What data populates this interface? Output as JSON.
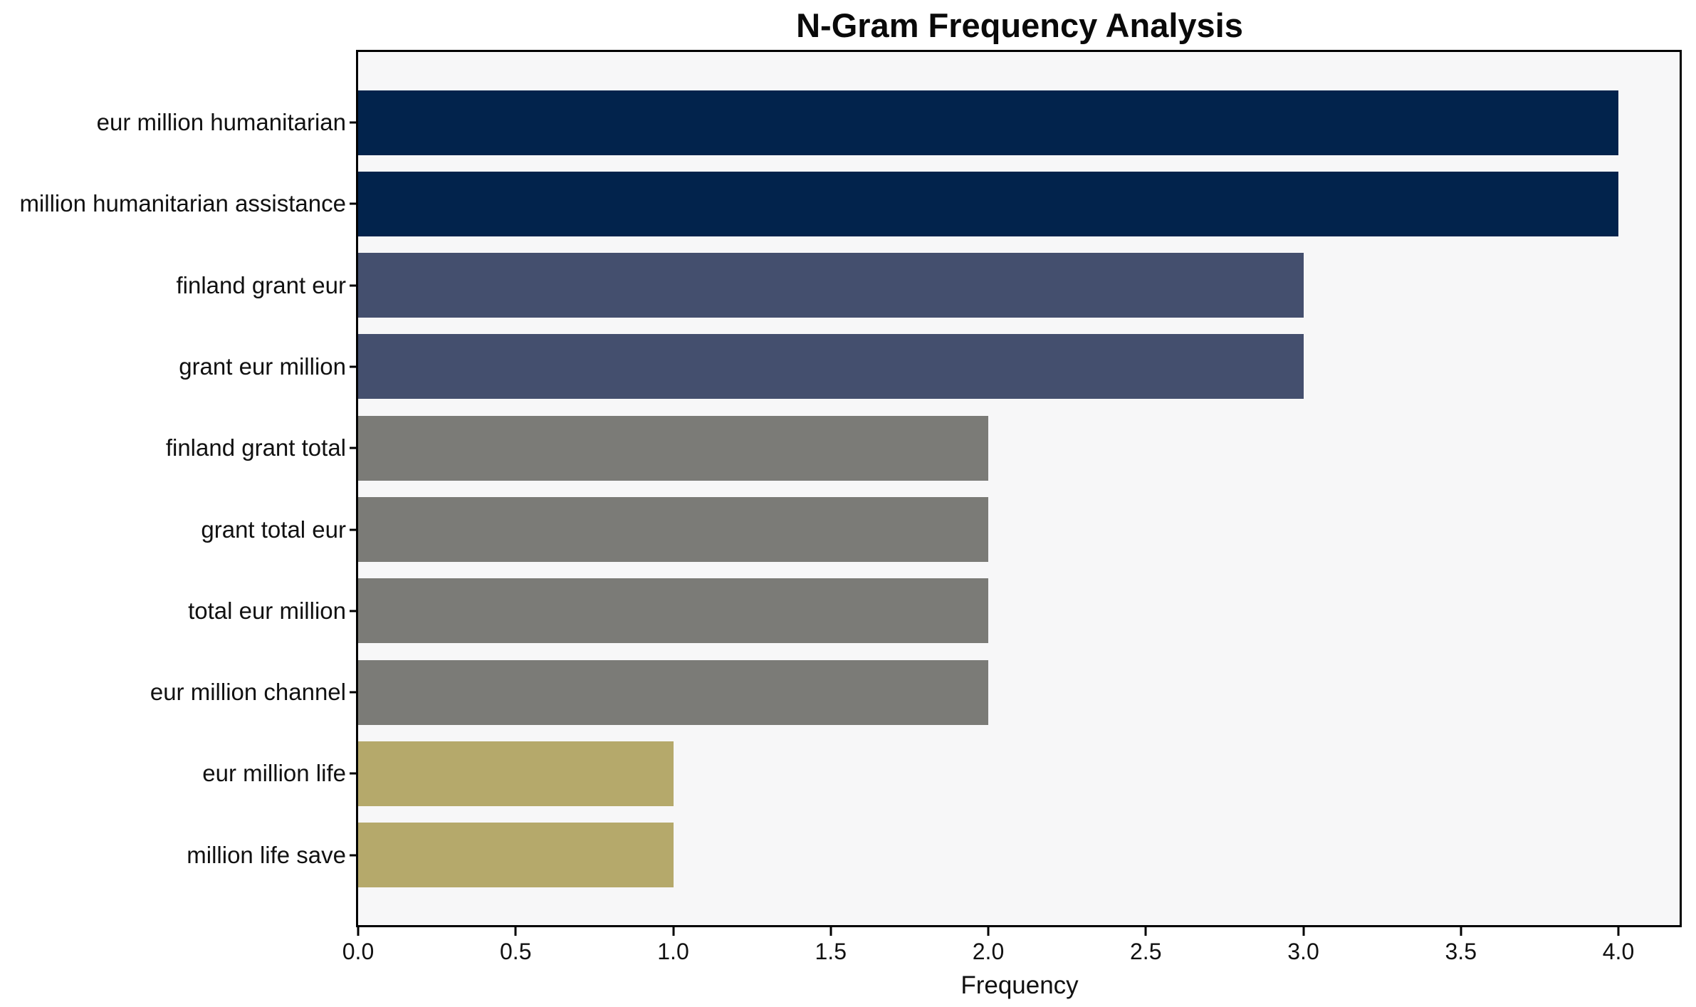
{
  "chart_data": {
    "type": "bar",
    "orientation": "horizontal",
    "title": "N-Gram Frequency Analysis",
    "xlabel": "Frequency",
    "ylabel": "",
    "categories": [
      "eur million humanitarian",
      "million humanitarian assistance",
      "finland grant eur",
      "grant eur million",
      "finland grant total",
      "grant total eur",
      "total eur million",
      "eur million channel",
      "eur million life",
      "million life save"
    ],
    "values": [
      4,
      4,
      3,
      3,
      2,
      2,
      2,
      2,
      1,
      1
    ],
    "bar_colors": [
      "#02234C",
      "#02234C",
      "#444F6E",
      "#444F6E",
      "#7B7B77",
      "#7B7B77",
      "#7B7B77",
      "#7B7B77",
      "#B5A96B",
      "#B5A96B"
    ],
    "xlim": [
      0,
      4.2
    ],
    "xticks": [
      0,
      0.5,
      1,
      1.5,
      2,
      2.5,
      3,
      3.5,
      4
    ],
    "xtick_labels": [
      "0.0",
      "0.5",
      "1.0",
      "1.5",
      "2.0",
      "2.5",
      "3.0",
      "3.5",
      "4.0"
    ],
    "grid": false,
    "legend_position": "none",
    "colors": {
      "plot_bg": "#F7F7F8",
      "figure_bg": "#FFFFFF",
      "spine": "#000000",
      "text": "#111111"
    }
  }
}
